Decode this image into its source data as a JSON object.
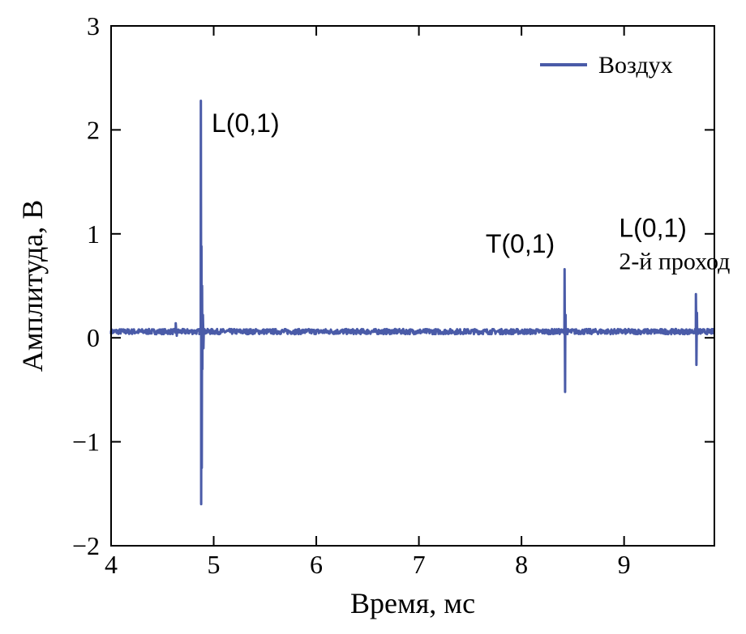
{
  "chart_data": {
    "type": "line",
    "xlabel": "Время, мс",
    "ylabel": "Амплитуда, В",
    "xlim": [
      4,
      9.88
    ],
    "ylim": [
      -2,
      3
    ],
    "xticks": [
      "4",
      "5",
      "6",
      "7",
      "8",
      "9"
    ],
    "yticks": [
      "−2",
      "−1",
      "0",
      "1",
      "2",
      "3"
    ],
    "grid": false,
    "legend_position": "top-right",
    "line_color": "#4a5ba8",
    "series": [
      {
        "name": "Воздух",
        "baseline": 0.06,
        "noise_amplitude": 0.025,
        "x": [
          4.0,
          4.62,
          4.63,
          4.64,
          4.86,
          4.875,
          4.878,
          4.881,
          4.884,
          4.887,
          4.89,
          4.895,
          4.9,
          4.93,
          8.4,
          8.42,
          8.425,
          8.43,
          8.44,
          9.68,
          9.7,
          9.705,
          9.71,
          9.72,
          9.88
        ],
        "y": [
          0.06,
          0.06,
          0.14,
          0.02,
          0.06,
          2.28,
          -1.6,
          0.88,
          -1.25,
          0.5,
          -0.3,
          0.22,
          -0.1,
          0.06,
          0.06,
          0.66,
          -0.52,
          0.22,
          0.06,
          0.06,
          0.42,
          -0.26,
          0.24,
          0.06,
          0.06
        ]
      }
    ],
    "annotations": [
      {
        "text": "L(0,1)",
        "x": 4.98,
        "y": 1.98
      },
      {
        "text": "T(0,1)",
        "x": 7.65,
        "y": 0.82
      },
      {
        "text": "L(0,1)",
        "x": 8.95,
        "y": 0.97
      },
      {
        "text": "2-й проход",
        "x": 8.95,
        "y": 0.66
      }
    ]
  }
}
